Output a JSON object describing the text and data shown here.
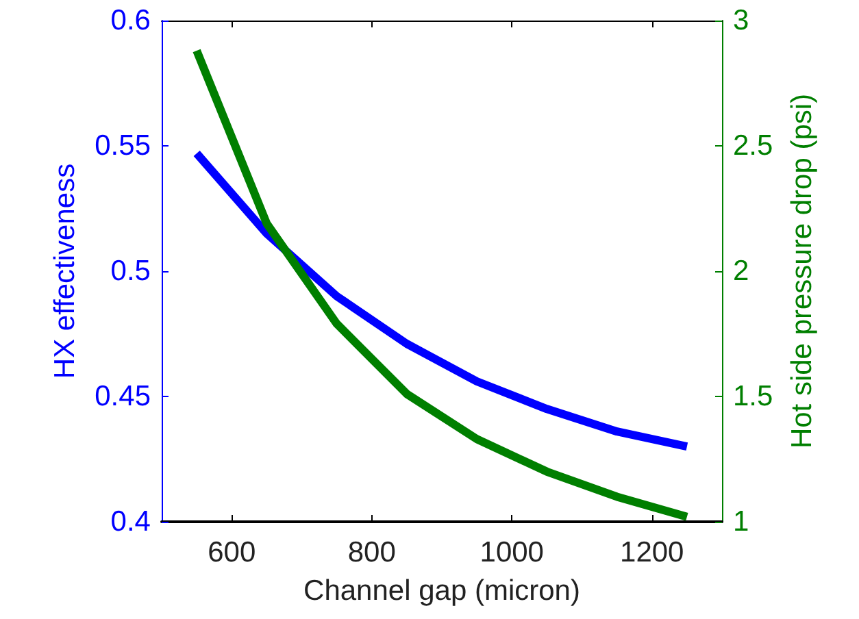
{
  "chart_data": {
    "type": "line",
    "xlabel": "Channel gap (micron)",
    "ylabel": "HX effectiveness",
    "y2label": "Hot side pressure drop (psi)",
    "x": [
      550,
      650,
      750,
      850,
      950,
      1050,
      1150,
      1250
    ],
    "series": [
      {
        "color": "#0000ff",
        "values": [
          0.547,
          0.515,
          0.49,
          0.471,
          0.456,
          0.445,
          0.436,
          0.43
        ]
      },
      {
        "color": "#007f00",
        "axis": "y2",
        "values": [
          2.88,
          2.19,
          1.79,
          1.51,
          1.33,
          1.2,
          1.1,
          1.02
        ]
      }
    ],
    "xlim": [
      500,
      1300
    ],
    "xticks": [
      600,
      800,
      1000,
      1200
    ],
    "ylim": [
      0.4,
      0.6
    ],
    "yticks": [
      0.4,
      0.45,
      0.5,
      0.55,
      0.6
    ],
    "y2lim": [
      1,
      3
    ],
    "y2ticks": [
      1,
      1.5,
      2,
      2.5,
      3
    ],
    "grid": false,
    "marker": "none",
    "line_style": "solid"
  }
}
